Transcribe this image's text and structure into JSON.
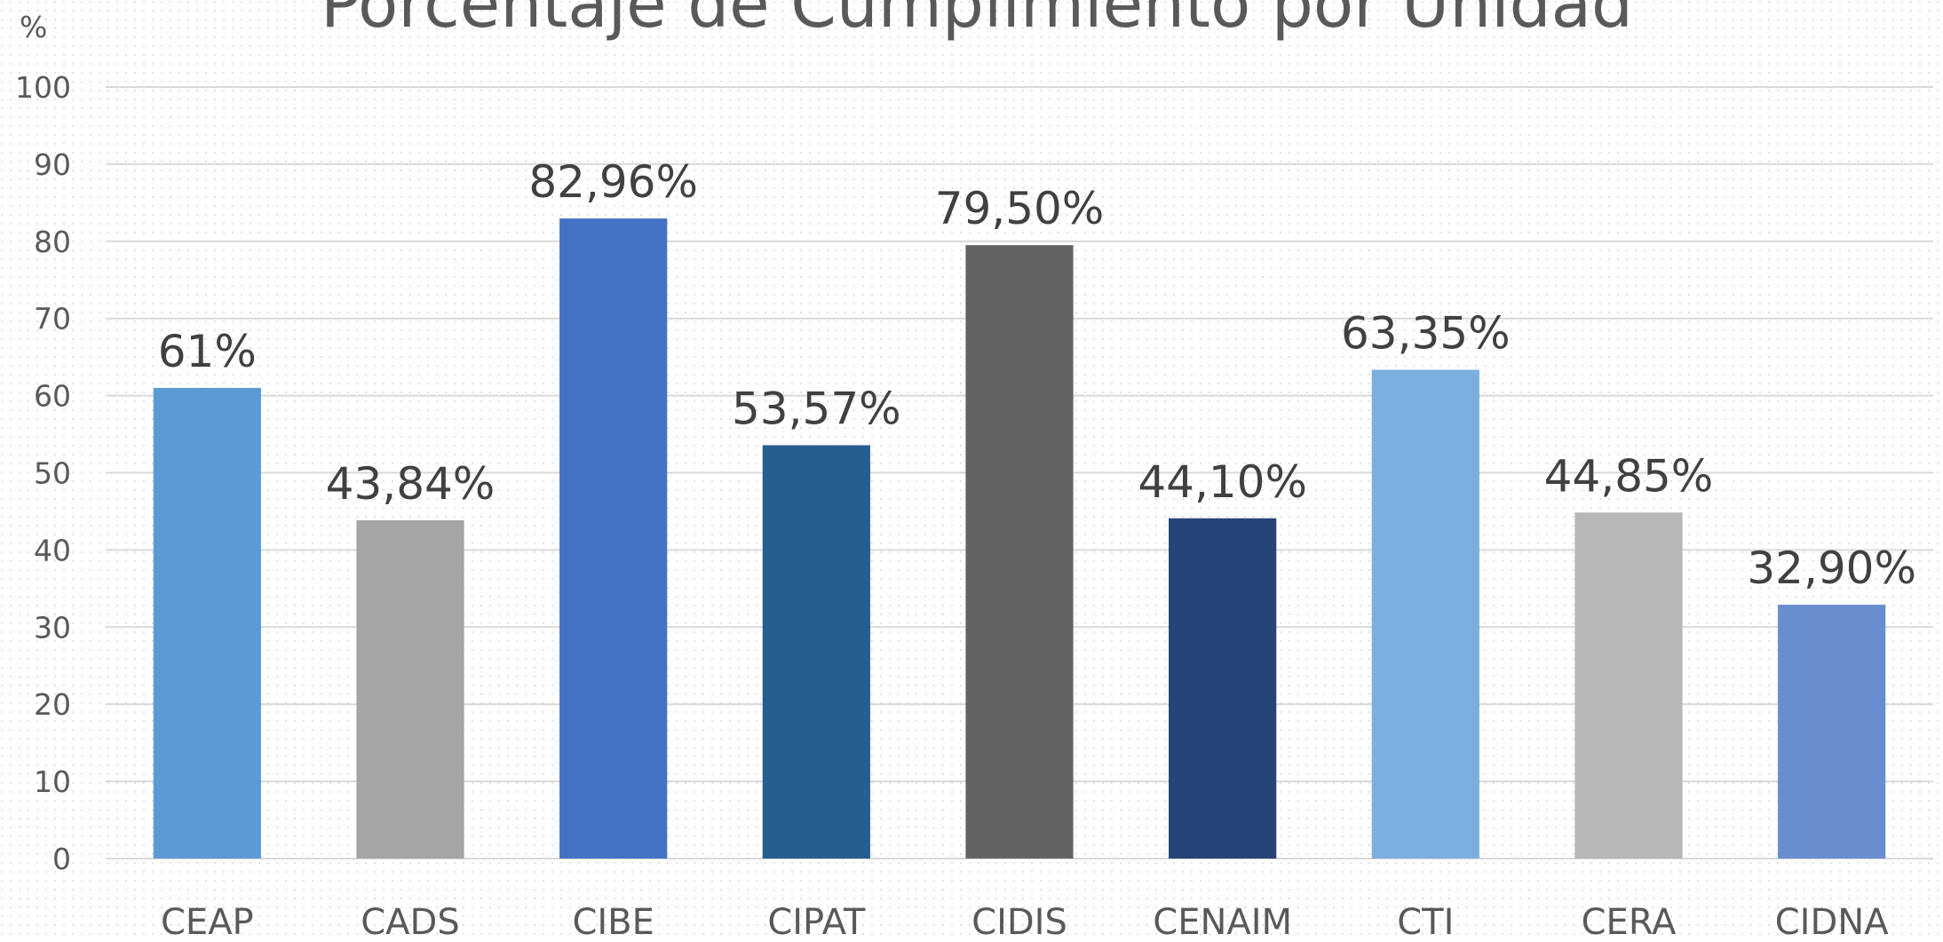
{
  "chart_data": {
    "type": "bar",
    "title": "Porcentaje de Cumplimiento por Unidad",
    "y_label": "%",
    "categories": [
      "CEAP",
      "CADS",
      "CIBE",
      "CIPAT",
      "CIDIS",
      "CENAIM",
      "CTI",
      "CERA",
      "CIDNA"
    ],
    "values": [
      61,
      43.84,
      82.96,
      53.57,
      79.5,
      44.1,
      63.35,
      44.85,
      32.9
    ],
    "value_labels": [
      "61%",
      "43,84%",
      "82,96%",
      "53,57%",
      "79,50%",
      "44,10%",
      "63,35%",
      "44,85%",
      "32,90%"
    ],
    "colors": [
      "#5b9bd5",
      "#a5a5a5",
      "#4472c4",
      "#255e91",
      "#636363",
      "#264478",
      "#7cafdd",
      "#b7b7b7",
      "#698ed0"
    ],
    "ylim": [
      0,
      100
    ],
    "yticks": [
      0,
      10,
      20,
      30,
      40,
      50,
      60,
      70,
      80,
      90,
      100
    ],
    "grid": true
  }
}
